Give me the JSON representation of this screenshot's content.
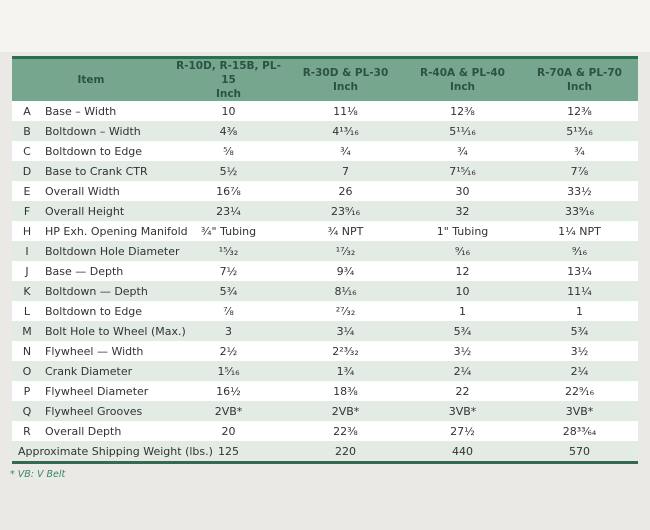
{
  "colors": {
    "header_green": "#76a78e",
    "header_text_green": "#2c5243",
    "border_dark_green": "#2e6e50",
    "row_tint_green": "#e2ebe4",
    "footnote_green": "#3f8665",
    "page_background": "#eae9e6"
  },
  "table": {
    "columns": [
      {
        "label": "Item",
        "unit": ""
      },
      {
        "label": "R-10D, R-15B, PL-15",
        "unit": "Inch"
      },
      {
        "label": "R-30D & PL-30",
        "unit": "Inch"
      },
      {
        "label": "R-40A & PL-40",
        "unit": "Inch"
      },
      {
        "label": "R-70A & PL-70",
        "unit": "Inch"
      }
    ],
    "rows": [
      {
        "letter": "A",
        "item": "Base – Width",
        "values": [
          "10",
          "11⅛",
          "12⅜",
          "12⅜"
        ]
      },
      {
        "letter": "B",
        "item": "Boltdown – Width",
        "values": [
          "4⅜",
          "4¹³⁄₁₆",
          "5¹¹⁄₁₆",
          "5¹³⁄₁₆"
        ]
      },
      {
        "letter": "C",
        "item": "Boltdown to Edge",
        "values": [
          "⅝",
          "¾",
          "¾",
          "¾"
        ]
      },
      {
        "letter": "D",
        "item": "Base to Crank CTR",
        "values": [
          "5½",
          "7",
          "7¹⁵⁄₁₆",
          "7⅞"
        ]
      },
      {
        "letter": "E",
        "item": "Overall Width",
        "values": [
          "16⅞",
          "26",
          "30",
          "33½"
        ]
      },
      {
        "letter": "F",
        "item": "Overall Height",
        "values": [
          "23¼",
          "23⁹⁄₁₆",
          "32",
          "33⁹⁄₁₆"
        ]
      },
      {
        "letter": "H",
        "item": "HP Exh. Opening Manifold",
        "values": [
          "¾\" Tubing",
          "¾ NPT",
          "1\" Tubing",
          "1¼ NPT"
        ]
      },
      {
        "letter": "I",
        "item": "Boltdown Hole Diameter",
        "values": [
          "¹⁵⁄₃₂",
          "¹⁷⁄₃₂",
          "⁹⁄₁₆",
          "⁹⁄₁₆"
        ]
      },
      {
        "letter": "J",
        "item": "Base — Depth",
        "values": [
          "7½",
          "9¾",
          "12",
          "13¼"
        ]
      },
      {
        "letter": "K",
        "item": "Boltdown — Depth",
        "values": [
          "5¾",
          "8¹⁄₁₆",
          "10",
          "11¼"
        ]
      },
      {
        "letter": "L",
        "item": "Boltdown to Edge",
        "values": [
          "⅞",
          "²⁷⁄₃₂",
          "1",
          "1"
        ]
      },
      {
        "letter": "M",
        "item": "Bolt Hole to Wheel (Max.)",
        "values": [
          "3",
          "3¼",
          "5¾",
          "5¾"
        ]
      },
      {
        "letter": "N",
        "item": "Flywheel — Width",
        "values": [
          "2½",
          "2²³⁄₃₂",
          "3½",
          "3½"
        ]
      },
      {
        "letter": "O",
        "item": "Crank Diameter",
        "values": [
          "1⁵⁄₁₆",
          "1¾",
          "2¼",
          "2¼"
        ]
      },
      {
        "letter": "P",
        "item": "Flywheel Diameter",
        "values": [
          "16½",
          "18⅜",
          "22",
          "22⁹⁄₁₆"
        ]
      },
      {
        "letter": "Q",
        "item": "Flywheel Grooves",
        "values": [
          "2VB*",
          "2VB*",
          "3VB*",
          "3VB*"
        ]
      },
      {
        "letter": "R",
        "item": "Overall Depth",
        "values": [
          "20",
          "22⅜",
          "27½",
          "28³³⁄₆₄"
        ]
      },
      {
        "letter": "",
        "item": "Approximate Shipping Weight (lbs.)",
        "values": [
          "125",
          "220",
          "440",
          "570"
        ]
      }
    ],
    "footnote": "* VB: V Belt"
  }
}
